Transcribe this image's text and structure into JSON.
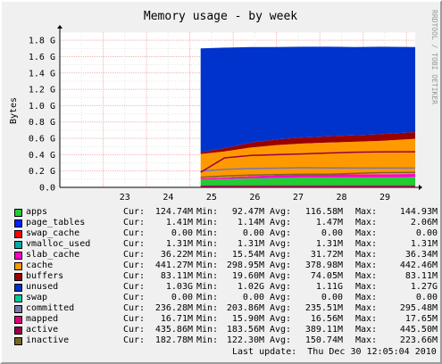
{
  "chart_data": {
    "type": "area",
    "title": "Memory usage - by week",
    "ylabel": "Bytes",
    "xlabel": "",
    "side_label": "RRDTOOL / TOBI OETIKER",
    "ylim": [
      0,
      1.9
    ],
    "yticks": [
      0,
      0.2,
      0.4,
      0.6,
      0.8,
      1.0,
      1.2,
      1.4,
      1.6,
      1.8
    ],
    "ytick_labels": [
      "0.0",
      "0.2 G",
      "0.4 G",
      "0.6 G",
      "0.8 G",
      "1.0 G",
      "1.2 G",
      "1.4 G",
      "1.6 G",
      "1.8 G"
    ],
    "xlim": [
      22,
      30.2
    ],
    "xticks": [
      23,
      24,
      25,
      26,
      27,
      28,
      29
    ],
    "xtick_labels": [
      "23",
      "24",
      "25",
      "26",
      "27",
      "28",
      "29"
    ],
    "data_start": 25.25,
    "units": "GB",
    "x": [
      25.25,
      25.8,
      26.4,
      27.0,
      27.6,
      28.2,
      28.8,
      29.4,
      30.2
    ],
    "series": [
      {
        "name": "apps",
        "color": "#22cc33",
        "values": [
          0.09,
          0.1,
          0.11,
          0.115,
          0.12,
          0.12,
          0.12,
          0.12,
          0.125
        ]
      },
      {
        "name": "page_tables",
        "color": "#0022ff",
        "values": [
          0.001,
          0.001,
          0.0014,
          0.0015,
          0.0015,
          0.0016,
          0.0016,
          0.0017,
          0.0014
        ]
      },
      {
        "name": "swap_cache",
        "color": "#ff0000",
        "values": [
          0,
          0,
          0,
          0,
          0,
          0,
          0,
          0,
          0
        ]
      },
      {
        "name": "vmalloc_used",
        "color": "#00aaaa",
        "values": [
          0.0013,
          0.0013,
          0.0013,
          0.0013,
          0.0013,
          0.0013,
          0.0013,
          0.0013,
          0.0013
        ]
      },
      {
        "name": "slab_cache",
        "color": "#ff00cc",
        "values": [
          0.016,
          0.018,
          0.024,
          0.03,
          0.033,
          0.035,
          0.035,
          0.036,
          0.036
        ]
      },
      {
        "name": "cache",
        "color": "#ff9900",
        "values": [
          0.3,
          0.32,
          0.35,
          0.37,
          0.38,
          0.39,
          0.4,
          0.41,
          0.43
        ]
      },
      {
        "name": "buffers",
        "color": "#990000",
        "values": [
          0.02,
          0.04,
          0.06,
          0.07,
          0.075,
          0.078,
          0.08,
          0.082,
          0.083
        ]
      },
      {
        "name": "unused",
        "color": "#0033cc",
        "values": [
          1.273,
          1.23,
          1.17,
          1.13,
          1.11,
          1.095,
          1.08,
          1.07,
          1.04
        ]
      },
      {
        "name": "swap",
        "color": "#00cc99",
        "values": [
          0,
          0,
          0,
          0,
          0,
          0,
          0,
          0,
          0
        ]
      },
      {
        "name": "committed",
        "color": "#7777aa",
        "values": [
          0.2,
          0.22,
          0.23,
          0.235,
          0.24,
          0.238,
          0.236,
          0.236,
          0.236
        ],
        "line": true
      },
      {
        "name": "mapped",
        "color": "#dd0077",
        "values": [
          0.015,
          0.016,
          0.0165,
          0.0166,
          0.0167,
          0.0167,
          0.0167,
          0.0167,
          0.0167
        ],
        "line": true
      },
      {
        "name": "active",
        "color": "#990044",
        "values": [
          0.184,
          0.36,
          0.39,
          0.4,
          0.41,
          0.42,
          0.43,
          0.435,
          0.436
        ],
        "line": true
      },
      {
        "name": "inactive",
        "color": "#776622",
        "values": [
          0.122,
          0.14,
          0.15,
          0.155,
          0.16,
          0.16,
          0.17,
          0.18,
          0.183
        ],
        "line": true
      }
    ]
  },
  "legend": {
    "cur_label": "Cur:",
    "min_label": "Min:",
    "avg_label": "Avg:",
    "max_label": "Max:",
    "rows": [
      {
        "name": "apps",
        "color": "#22cc33",
        "cur": "124.74M",
        "min": "92.47M",
        "avg": "116.58M",
        "max": "144.93M"
      },
      {
        "name": "page_tables",
        "color": "#0022ff",
        "cur": "1.41M",
        "min": "1.14M",
        "avg": "1.47M",
        "max": "2.06M"
      },
      {
        "name": "swap_cache",
        "color": "#ff0000",
        "cur": "0.00",
        "min": "0.00",
        "avg": "0.00",
        "max": "0.00"
      },
      {
        "name": "vmalloc_used",
        "color": "#00aaaa",
        "cur": "1.31M",
        "min": "1.31M",
        "avg": "1.31M",
        "max": "1.31M"
      },
      {
        "name": "slab_cache",
        "color": "#ff00cc",
        "cur": "36.22M",
        "min": "15.54M",
        "avg": "31.72M",
        "max": "36.34M"
      },
      {
        "name": "cache",
        "color": "#ff9900",
        "cur": "441.27M",
        "min": "298.95M",
        "avg": "378.98M",
        "max": "442.46M"
      },
      {
        "name": "buffers",
        "color": "#990000",
        "cur": "83.11M",
        "min": "19.60M",
        "avg": "74.05M",
        "max": "83.11M"
      },
      {
        "name": "unused",
        "color": "#0033cc",
        "cur": "1.03G",
        "min": "1.02G",
        "avg": "1.11G",
        "max": "1.27G"
      },
      {
        "name": "swap",
        "color": "#00cc99",
        "cur": "0.00",
        "min": "0.00",
        "avg": "0.00",
        "max": "0.00"
      },
      {
        "name": "committed",
        "color": "#7777aa",
        "cur": "236.28M",
        "min": "203.86M",
        "avg": "235.51M",
        "max": "295.48M"
      },
      {
        "name": "mapped",
        "color": "#dd0077",
        "cur": "16.71M",
        "min": "15.90M",
        "avg": "16.56M",
        "max": "17.65M"
      },
      {
        "name": "active",
        "color": "#990044",
        "cur": "435.86M",
        "min": "183.56M",
        "avg": "389.11M",
        "max": "445.50M"
      },
      {
        "name": "inactive",
        "color": "#776622",
        "cur": "182.78M",
        "min": "122.30M",
        "avg": "150.74M",
        "max": "223.66M"
      }
    ]
  },
  "last_update": "Last update:  Thu Dec 30 12:05:04 2010"
}
